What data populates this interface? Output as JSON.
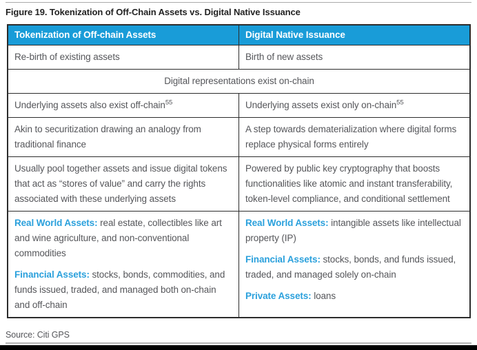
{
  "page": {
    "title": "Figure 19. Tokenization of Off-Chain Assets vs. Digital Native Issuance",
    "source": "Source: Citi GPS"
  },
  "colors": {
    "header_bg": "#199CD8",
    "label_blue": "#2AA0DC",
    "body_text": "#55565A",
    "border": "#2B2B2B"
  },
  "table": {
    "headers": [
      "Tokenization of Off-chain Assets",
      "Digital Native Issuance"
    ],
    "rows": [
      {
        "type": "split",
        "cells": [
          {
            "paragraphs": [
              [
                {
                  "t": "Re-birth of existing assets"
                }
              ]
            ]
          },
          {
            "paragraphs": [
              [
                {
                  "t": "Birth of new assets"
                }
              ]
            ]
          }
        ]
      },
      {
        "type": "merged",
        "cell": {
          "paragraphs": [
            [
              {
                "t": "Digital representations exist on-chain"
              }
            ]
          ]
        }
      },
      {
        "type": "split",
        "cells": [
          {
            "paragraphs": [
              [
                {
                  "t": "Underlying assets also exist off-chain"
                },
                {
                  "t": "55",
                  "s": "sup"
                }
              ]
            ]
          },
          {
            "paragraphs": [
              [
                {
                  "t": "Underlying assets exist only on-chain"
                },
                {
                  "t": "55",
                  "s": "sup"
                }
              ]
            ]
          }
        ]
      },
      {
        "type": "split",
        "cells": [
          {
            "paragraphs": [
              [
                {
                  "t": "Akin to securitization drawing an analogy from traditional finance"
                }
              ]
            ]
          },
          {
            "paragraphs": [
              [
                {
                  "t": "A step towards dematerialization where digital forms replace physical forms entirely"
                }
              ]
            ]
          }
        ]
      },
      {
        "type": "split",
        "cells": [
          {
            "paragraphs": [
              [
                {
                  "t": "Usually pool together assets and issue digital tokens that act as “stores of value” and carry the rights associated with these underlying assets"
                }
              ]
            ]
          },
          {
            "paragraphs": [
              [
                {
                  "t": "Powered by public key cryptography that boosts functionalities like atomic and instant transferability, token-level compliance, and conditional settlement"
                }
              ]
            ]
          }
        ]
      },
      {
        "type": "split",
        "cells": [
          {
            "paragraphs": [
              [
                {
                  "t": "Real World Assets: ",
                  "s": "label"
                },
                {
                  "t": "real estate, collectibles like art and wine agriculture, and non-conventional commodities"
                }
              ],
              [
                {
                  "t": "Financial Assets: ",
                  "s": "label"
                },
                {
                  "t": "stocks, bonds, commodities, and funds issued, traded, and managed both on-chain and off-chain"
                }
              ]
            ]
          },
          {
            "paragraphs": [
              [
                {
                  "t": "Real World Assets: ",
                  "s": "label"
                },
                {
                  "t": "intangible assets like intellectual property (IP)"
                }
              ],
              [
                {
                  "t": "Financial Assets: ",
                  "s": "label"
                },
                {
                  "t": "stocks, bonds, and funds issued, traded, and managed solely on-chain"
                }
              ],
              [
                {
                  "t": "Private Assets: ",
                  "s": "label"
                },
                {
                  "t": "loans"
                }
              ]
            ]
          }
        ]
      }
    ]
  }
}
